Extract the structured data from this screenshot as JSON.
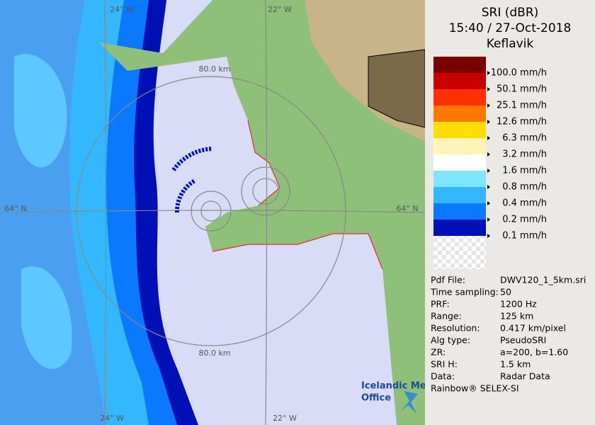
{
  "header": {
    "lines": [
      "SRI (dBR)",
      "15:40 / 27-Oct-2018",
      "Keflavik"
    ]
  },
  "map": {
    "labels": [
      {
        "text": "24° W",
        "pos": "top-left"
      },
      {
        "text": "22° W",
        "pos": "top-right"
      },
      {
        "text": "80.0 km",
        "pos": "inner-top"
      },
      {
        "text": "64° N",
        "pos": "left"
      },
      {
        "text": "64° N",
        "pos": "right"
      },
      {
        "text": "80.0 km",
        "pos": "outer-bottom"
      },
      {
        "text": "24° W",
        "pos": "bottom-left"
      },
      {
        "text": "22° W",
        "pos": "bottom-right"
      }
    ],
    "logo": [
      "Icelandic Met",
      "Office"
    ]
  },
  "legend": {
    "items": [
      {
        "label": "100.0 mm/h",
        "color": "#7a0000"
      },
      {
        "label": "50.1 mm/h",
        "color": "#c80000"
      },
      {
        "label": "25.1 mm/h",
        "color": "#ff3000"
      },
      {
        "label": "12.6 mm/h",
        "color": "#ff7800"
      },
      {
        "label": "6.3 mm/h",
        "color": "#ffdd00"
      },
      {
        "label": "3.2 mm/h",
        "color": "#fff4b8"
      },
      {
        "label": "1.6 mm/h",
        "color": "#ffffff"
      },
      {
        "label": "0.8 mm/h",
        "color": "#7ee6ff"
      },
      {
        "label": "0.4 mm/h",
        "color": "#33b8ff"
      },
      {
        "label": "0.2 mm/h",
        "color": "#0a78ff"
      },
      {
        "label": "0.1 mm/h",
        "color": "#0010b4"
      }
    ]
  },
  "info": {
    "rows": [
      [
        "Pdf File:",
        "DWV120_1_5km.sri"
      ],
      [
        "Time sampling:",
        "50"
      ],
      [
        "PRF:",
        "1200 Hz"
      ],
      [
        "Range:",
        "125 km"
      ],
      [
        "Resolution:",
        "0.417 km/pixel"
      ],
      [
        "Alg type:",
        "PseudoSRI"
      ],
      [
        "ZR:",
        "a=200, b=1.60"
      ],
      [
        "SRI H:",
        "1.5 km"
      ],
      [
        "Data:",
        "Radar Data"
      ]
    ],
    "footer": "Rainbow® SELEX-SI"
  }
}
